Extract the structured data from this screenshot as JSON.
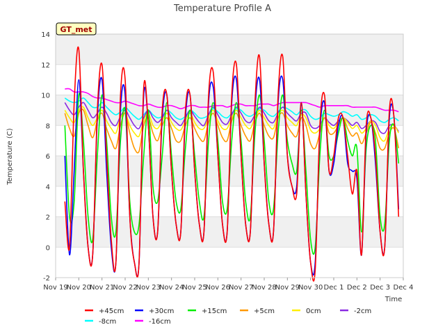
{
  "chart_data": {
    "type": "line",
    "title": "Temperature Profile A",
    "xlabel": "Time",
    "ylabel": "Temperature (C)",
    "badge": "GT_met",
    "ylim": [
      -2,
      14
    ],
    "yticks": [
      -2,
      0,
      2,
      4,
      6,
      8,
      10,
      12,
      14
    ],
    "xlim": [
      0,
      15
    ],
    "xtick_labels": [
      "Nov 19",
      "Nov 20",
      "Nov 21",
      "Nov 22",
      "Nov 23",
      "Nov 24",
      "Nov 25",
      "Nov 26",
      "Nov 27",
      "Nov 28",
      "Nov 29",
      "Nov 30",
      "Dec 1",
      "Dec 2",
      "Dec 3",
      "Dec 4"
    ],
    "grid": true,
    "legend_position": "bottom",
    "x": [
      0.4,
      0.6,
      0.8,
      1.0,
      1.2,
      1.4,
      1.6,
      1.8,
      2.0,
      2.2,
      2.4,
      2.6,
      2.8,
      3.0,
      3.2,
      3.4,
      3.6,
      3.8,
      4.0,
      4.2,
      4.4,
      4.6,
      4.8,
      5.0,
      5.2,
      5.4,
      5.6,
      5.8,
      6.0,
      6.2,
      6.4,
      6.6,
      6.8,
      7.0,
      7.2,
      7.4,
      7.6,
      7.8,
      8.0,
      8.2,
      8.4,
      8.6,
      8.8,
      9.0,
      9.2,
      9.4,
      9.6,
      9.8,
      10.0,
      10.2,
      10.4,
      10.6,
      10.8,
      11.0,
      11.2,
      11.4,
      11.6,
      11.8,
      12.0,
      12.2,
      12.4,
      12.6,
      12.8,
      13.0,
      13.2,
      13.4,
      13.6,
      13.8,
      14.0,
      14.2,
      14.4,
      14.6,
      14.8
    ],
    "series": [
      {
        "name": "+45cm",
        "color": "#ff0000",
        "values": [
          3.0,
          0.0,
          9.5,
          13.0,
          5.0,
          0.0,
          -0.5,
          9.0,
          12.0,
          6.0,
          0.5,
          -1.0,
          10.0,
          11.0,
          2.0,
          -1.0,
          -1.0,
          10.5,
          8.0,
          2.0,
          1.0,
          9.0,
          10.0,
          5.0,
          1.5,
          1.0,
          9.0,
          10.0,
          5.0,
          1.5,
          1.0,
          10.0,
          11.5,
          6.0,
          1.5,
          1.0,
          10.0,
          12.0,
          6.0,
          1.5,
          1.0,
          9.5,
          12.5,
          5.5,
          1.5,
          1.0,
          10.0,
          12.5,
          6.0,
          4.0,
          3.5,
          9.5,
          3.5,
          -1.0,
          -1.5,
          8.0,
          10.0,
          5.0,
          6.0,
          8.5,
          8.5,
          6.0,
          3.5,
          5.0,
          -0.5,
          8.0,
          8.5,
          6.0,
          1.0,
          0.0,
          9.0,
          8.5,
          2.0
        ]
      },
      {
        "name": "+30cm",
        "color": "#0000ff",
        "values": [
          6.0,
          -0.5,
          5.0,
          11.0,
          5.0,
          0.0,
          -0.5,
          8.5,
          11.0,
          5.0,
          0.0,
          -1.0,
          9.0,
          10.0,
          2.0,
          -1.0,
          -1.0,
          10.0,
          8.0,
          2.0,
          1.0,
          8.5,
          10.0,
          5.0,
          1.5,
          1.0,
          8.5,
          10.0,
          5.0,
          1.5,
          1.0,
          9.5,
          10.5,
          6.0,
          1.5,
          1.0,
          9.5,
          11.0,
          6.0,
          1.5,
          1.0,
          9.0,
          11.0,
          5.5,
          1.5,
          1.0,
          9.5,
          11.0,
          6.0,
          4.0,
          4.0,
          9.5,
          3.5,
          -1.0,
          -1.0,
          7.5,
          9.5,
          5.0,
          5.5,
          8.0,
          8.5,
          5.5,
          5.0,
          4.5,
          -0.5,
          7.5,
          8.5,
          5.5,
          1.0,
          0.0,
          8.5,
          8.5,
          2.5
        ]
      },
      {
        "name": "+15cm",
        "color": "#00ee00",
        "values": [
          8.0,
          2.0,
          3.0,
          10.0,
          7.0,
          2.0,
          0.5,
          6.0,
          10.0,
          7.0,
          2.0,
          1.0,
          7.0,
          9.0,
          3.0,
          1.0,
          1.5,
          6.0,
          9.0,
          4.0,
          3.0,
          6.0,
          9.5,
          6.0,
          3.0,
          2.5,
          6.5,
          9.0,
          6.0,
          3.0,
          2.0,
          7.0,
          9.5,
          7.0,
          3.0,
          2.5,
          7.0,
          9.5,
          7.0,
          3.0,
          2.0,
          7.5,
          10.0,
          7.0,
          3.0,
          2.5,
          7.5,
          10.0,
          7.0,
          5.5,
          5.0,
          9.0,
          5.0,
          0.5,
          0.0,
          6.0,
          9.0,
          6.0,
          6.0,
          7.5,
          8.5,
          7.0,
          6.0,
          6.5,
          1.0,
          6.5,
          8.0,
          7.0,
          2.0,
          1.5,
          7.0,
          8.0,
          5.5
        ]
      },
      {
        "name": "+5cm",
        "color": "#ff9900",
        "values": [
          8.8,
          7.8,
          7.3,
          8.8,
          9.0,
          8.0,
          7.2,
          8.3,
          8.8,
          7.8,
          7.0,
          6.5,
          8.0,
          8.8,
          7.5,
          6.5,
          6.3,
          8.0,
          8.5,
          7.5,
          7.0,
          8.0,
          8.5,
          7.8,
          7.0,
          7.0,
          8.0,
          8.5,
          7.8,
          7.2,
          7.0,
          8.2,
          8.8,
          8.0,
          7.2,
          7.0,
          8.3,
          8.8,
          8.0,
          7.3,
          7.0,
          8.2,
          8.8,
          8.0,
          7.3,
          7.2,
          8.5,
          8.8,
          8.0,
          7.5,
          7.3,
          8.5,
          8.0,
          6.8,
          6.5,
          7.5,
          8.5,
          7.5,
          7.5,
          8.0,
          8.5,
          7.8,
          7.3,
          7.5,
          6.8,
          7.5,
          8.2,
          7.5,
          6.5,
          6.5,
          7.5,
          7.8,
          6.5
        ]
      },
      {
        "name": "0cm",
        "color": "#ffee00",
        "values": [
          9.0,
          8.5,
          8.2,
          9.0,
          9.2,
          8.5,
          8.0,
          8.5,
          9.0,
          8.3,
          7.8,
          7.5,
          8.5,
          8.8,
          8.0,
          7.5,
          7.3,
          8.3,
          8.8,
          8.0,
          7.8,
          8.3,
          8.8,
          8.2,
          7.8,
          7.7,
          8.3,
          8.8,
          8.2,
          7.8,
          7.8,
          8.5,
          9.0,
          8.3,
          7.8,
          7.8,
          8.5,
          9.0,
          8.5,
          8.0,
          7.8,
          8.5,
          9.0,
          8.5,
          8.0,
          7.8,
          8.7,
          9.0,
          8.5,
          8.2,
          8.0,
          8.7,
          8.5,
          7.7,
          7.5,
          7.8,
          8.5,
          8.0,
          7.8,
          8.2,
          8.5,
          8.2,
          7.8,
          8.0,
          7.5,
          7.8,
          8.3,
          8.0,
          7.2,
          7.0,
          7.8,
          8.0,
          7.5
        ]
      },
      {
        "name": "-2cm",
        "color": "#8a2be2",
        "values": [
          9.5,
          9.0,
          8.7,
          9.2,
          9.5,
          9.0,
          8.5,
          8.8,
          9.2,
          8.8,
          8.2,
          8.0,
          8.6,
          9.0,
          8.5,
          8.0,
          7.8,
          8.5,
          9.0,
          8.5,
          8.2,
          8.5,
          9.0,
          8.5,
          8.2,
          8.0,
          8.5,
          9.0,
          8.6,
          8.2,
          8.0,
          8.7,
          9.2,
          8.7,
          8.2,
          8.1,
          8.7,
          9.2,
          8.8,
          8.3,
          8.2,
          8.7,
          9.2,
          8.8,
          8.3,
          8.2,
          8.8,
          9.2,
          8.8,
          8.5,
          8.3,
          8.8,
          8.8,
          8.0,
          7.8,
          8.0,
          8.5,
          8.2,
          8.0,
          8.3,
          8.5,
          8.3,
          8.0,
          8.2,
          7.8,
          8.0,
          8.3,
          8.2,
          7.6,
          7.5,
          8.0,
          8.0,
          7.6
        ]
      },
      {
        "name": "-8cm",
        "color": "#00ffff",
        "values": [
          9.8,
          9.6,
          9.5,
          9.6,
          9.8,
          9.5,
          9.2,
          9.2,
          9.5,
          9.2,
          8.9,
          8.7,
          8.9,
          9.2,
          8.9,
          8.6,
          8.4,
          8.7,
          9.0,
          8.7,
          8.5,
          8.6,
          9.0,
          8.8,
          8.5,
          8.4,
          8.6,
          9.0,
          8.8,
          8.5,
          8.5,
          8.7,
          9.1,
          8.9,
          8.6,
          8.5,
          8.8,
          9.1,
          9.0,
          8.7,
          8.6,
          8.8,
          9.1,
          9.0,
          8.7,
          8.6,
          8.9,
          9.2,
          9.1,
          8.9,
          8.7,
          9.0,
          9.0,
          8.6,
          8.4,
          8.5,
          8.8,
          8.7,
          8.6,
          8.7,
          8.9,
          8.8,
          8.6,
          8.7,
          8.4,
          8.5,
          8.7,
          8.6,
          8.3,
          8.2,
          8.4,
          8.5,
          8.3
        ]
      },
      {
        "name": "-16cm",
        "color": "#ff00ff",
        "values": [
          10.4,
          10.4,
          10.2,
          10.2,
          10.2,
          10.1,
          9.9,
          9.8,
          9.8,
          9.7,
          9.6,
          9.5,
          9.5,
          9.6,
          9.5,
          9.4,
          9.3,
          9.3,
          9.4,
          9.3,
          9.2,
          9.2,
          9.3,
          9.3,
          9.2,
          9.1,
          9.2,
          9.3,
          9.3,
          9.2,
          9.2,
          9.2,
          9.3,
          9.3,
          9.3,
          9.2,
          9.3,
          9.4,
          9.4,
          9.3,
          9.3,
          9.3,
          9.4,
          9.4,
          9.4,
          9.3,
          9.4,
          9.5,
          9.5,
          9.5,
          9.5,
          9.5,
          9.5,
          9.4,
          9.3,
          9.2,
          9.3,
          9.3,
          9.3,
          9.3,
          9.3,
          9.3,
          9.2,
          9.2,
          9.2,
          9.2,
          9.2,
          9.2,
          9.1,
          9.0,
          9.0,
          9.0,
          8.9
        ]
      }
    ]
  }
}
